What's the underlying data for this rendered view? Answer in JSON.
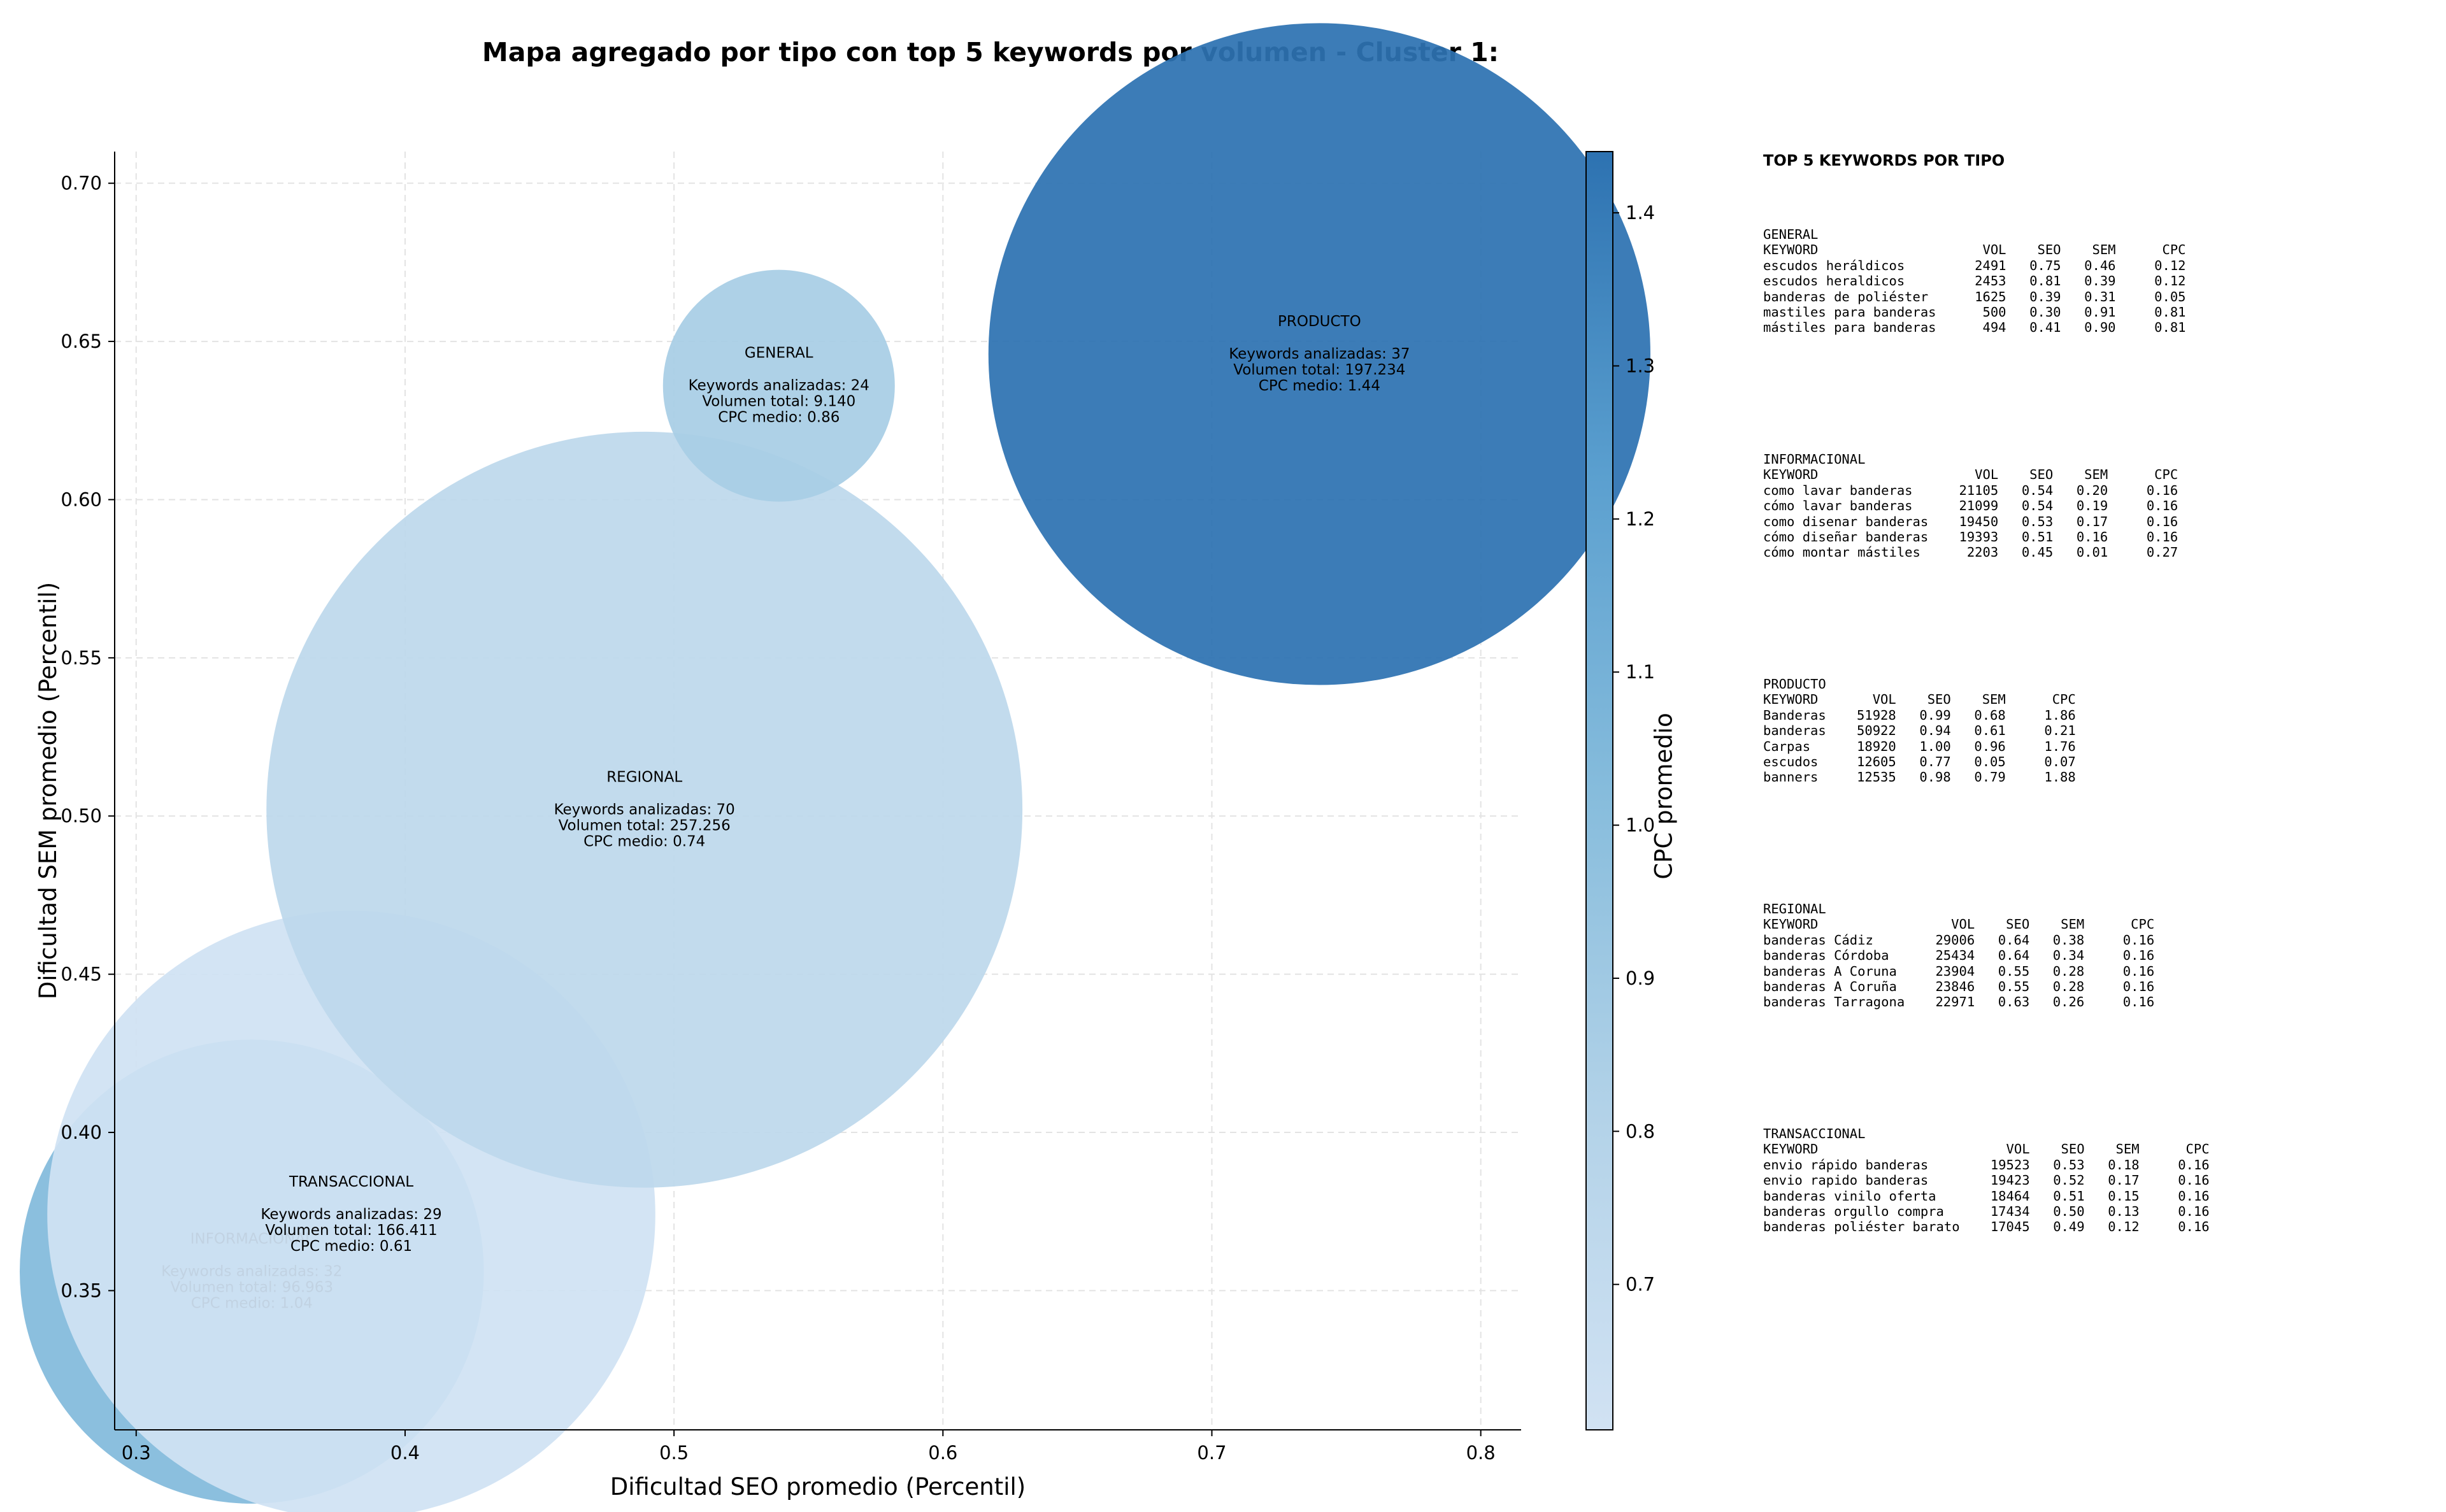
{
  "chart_data": {
    "type": "scatter",
    "title": "Mapa agregado por tipo con top 5 keywords por volumen - Cluster 1:",
    "xlabel": "Dificultad SEO promedio (Percentil)",
    "ylabel": "Dificultad SEM promedio (Percentil)",
    "xlim": [
      0.292,
      0.815
    ],
    "ylim": [
      0.306,
      0.71
    ],
    "xticks": [
      "0.3",
      "0.4",
      "0.5",
      "0.6",
      "0.7",
      "0.8"
    ],
    "yticks": [
      "0.35",
      "0.40",
      "0.45",
      "0.50",
      "0.55",
      "0.60",
      "0.65",
      "0.70"
    ],
    "grid": true,
    "colorbar": {
      "label": "CPC promedio",
      "range": [
        0.605,
        1.44
      ],
      "ticks": [
        "0.7",
        "0.8",
        "0.9",
        "1.0",
        "1.1",
        "1.2",
        "1.3",
        "1.4"
      ],
      "colormap": "Blues"
    },
    "bubbles": [
      {
        "name": "INFORMACIONAL",
        "x": 0.343,
        "y": 0.356,
        "keywords_line": "Keywords analizadas: 32",
        "volume_line": "Volumen total: 96.963",
        "cpc_line": "CPC medio: 1.04",
        "volume": 96963,
        "cpc": 1.04
      },
      {
        "name": "TRANSACCIONAL",
        "x": 0.38,
        "y": 0.374,
        "keywords_line": "Keywords analizadas: 29",
        "volume_line": "Volumen total: 166.411",
        "cpc_line": "CPC medio: 0.61",
        "volume": 166411,
        "cpc": 0.61
      },
      {
        "name": "REGIONAL",
        "x": 0.489,
        "y": 0.502,
        "keywords_line": "Keywords analizadas: 70",
        "volume_line": "Volumen total: 257.256",
        "cpc_line": "CPC medio: 0.74",
        "volume": 257256,
        "cpc": 0.74
      },
      {
        "name": "GENERAL",
        "x": 0.539,
        "y": 0.636,
        "keywords_line": "Keywords analizadas: 24",
        "volume_line": "Volumen total: 9.140",
        "cpc_line": "CPC medio: 0.86",
        "volume": 9140,
        "cpc": 0.86
      },
      {
        "name": "PRODUCTO",
        "x": 0.74,
        "y": 0.646,
        "keywords_line": "Keywords analizadas: 37",
        "volume_line": "Volumen total: 197.234",
        "cpc_line": "CPC medio: 1.44",
        "volume": 197234,
        "cpc": 1.44
      }
    ]
  },
  "tables": {
    "title": "TOP 5 KEYWORDS POR TIPO",
    "headers": [
      "KEYWORD",
      "VOL",
      "SEO",
      "SEM",
      "CPC"
    ],
    "groups": [
      {
        "name": "GENERAL",
        "rows": [
          [
            "escudos heráldicos",
            "2491",
            "0.75",
            "0.46",
            "0.12"
          ],
          [
            "escudos heraldicos",
            "2453",
            "0.81",
            "0.39",
            "0.12"
          ],
          [
            "banderas de poliéster",
            "1625",
            "0.39",
            "0.31",
            "0.05"
          ],
          [
            "mastiles para banderas",
            "500",
            "0.30",
            "0.91",
            "0.81"
          ],
          [
            "mástiles para banderas",
            "494",
            "0.41",
            "0.90",
            "0.81"
          ]
        ]
      },
      {
        "name": "INFORMACIONAL",
        "rows": [
          [
            "como lavar banderas",
            "21105",
            "0.54",
            "0.20",
            "0.16"
          ],
          [
            "cómo lavar banderas",
            "21099",
            "0.54",
            "0.19",
            "0.16"
          ],
          [
            "como disenar banderas",
            "19450",
            "0.53",
            "0.17",
            "0.16"
          ],
          [
            "cómo diseñar banderas",
            "19393",
            "0.51",
            "0.16",
            "0.16"
          ],
          [
            "cómo montar mástiles",
            "2203",
            "0.45",
            "0.01",
            "0.27"
          ]
        ]
      },
      {
        "name": "PRODUCTO",
        "rows": [
          [
            "Banderas",
            "51928",
            "0.99",
            "0.68",
            "1.86"
          ],
          [
            "banderas",
            "50922",
            "0.94",
            "0.61",
            "0.21"
          ],
          [
            "Carpas",
            "18920",
            "1.00",
            "0.96",
            "1.76"
          ],
          [
            "escudos",
            "12605",
            "0.77",
            "0.05",
            "0.07"
          ],
          [
            "banners",
            "12535",
            "0.98",
            "0.79",
            "1.88"
          ]
        ]
      },
      {
        "name": "REGIONAL",
        "rows": [
          [
            "banderas Cádiz",
            "29006",
            "0.64",
            "0.38",
            "0.16"
          ],
          [
            "banderas Córdoba",
            "25434",
            "0.64",
            "0.34",
            "0.16"
          ],
          [
            "banderas A Coruna",
            "23904",
            "0.55",
            "0.28",
            "0.16"
          ],
          [
            "banderas A Coruña",
            "23846",
            "0.55",
            "0.28",
            "0.16"
          ],
          [
            "banderas Tarragona",
            "22971",
            "0.63",
            "0.26",
            "0.16"
          ]
        ]
      },
      {
        "name": "TRANSACCIONAL",
        "rows": [
          [
            "envio rápido banderas",
            "19523",
            "0.53",
            "0.18",
            "0.16"
          ],
          [
            "envio rapido banderas",
            "19423",
            "0.52",
            "0.17",
            "0.16"
          ],
          [
            "banderas vinilo oferta",
            "18464",
            "0.51",
            "0.15",
            "0.16"
          ],
          [
            "banderas orgullo compra",
            "17434",
            "0.50",
            "0.13",
            "0.16"
          ],
          [
            "banderas poliéster barato",
            "17045",
            "0.49",
            "0.12",
            "0.16"
          ]
        ]
      }
    ]
  }
}
